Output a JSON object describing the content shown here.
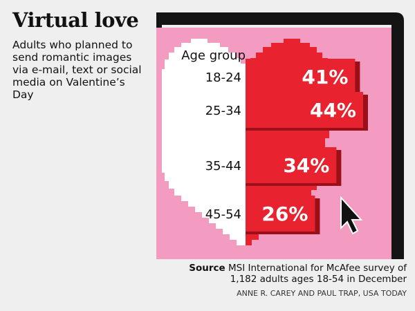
{
  "title": "Virtual love",
  "subtitle": "Adults who planned to send romantic images via e-mail, text or social media on Valentine’s Day",
  "source_label": "Source",
  "source_text": "MSI International for McAfee survey of 1,182 adults ages 18-54 in December",
  "credit": "ANNE R. CAREY AND PAUL TRAP, USA TODAY",
  "colors": {
    "background": "#efefef",
    "screen": "#f39bc0",
    "heart_left": "#ffffff",
    "heart_right": "#e8222e",
    "bar_shadow": "#9b0f18",
    "monitor_frame": "#141414"
  },
  "icons": [
    "mouse-cursor-icon"
  ],
  "chart_data": {
    "type": "bar",
    "orientation": "horizontal",
    "category_title": "Age group",
    "categories": [
      "18-24",
      "25-34",
      "35-44",
      "45-54"
    ],
    "values": [
      41,
      44,
      34,
      26
    ],
    "value_labels": [
      "41%",
      "44%",
      "34%",
      "26%"
    ],
    "unit": "%"
  }
}
